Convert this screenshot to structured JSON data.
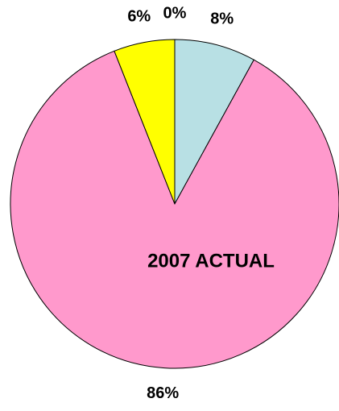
{
  "chart_data": {
    "type": "pie",
    "values": [
      8,
      86,
      6,
      0
    ],
    "value_labels": [
      "8%",
      "86%",
      "6%",
      "0%"
    ],
    "colors": [
      "#b8e0e4",
      "#ff99cc",
      "#ffff00",
      "#ffffff"
    ],
    "annotation": "2007 ACTUAL"
  }
}
